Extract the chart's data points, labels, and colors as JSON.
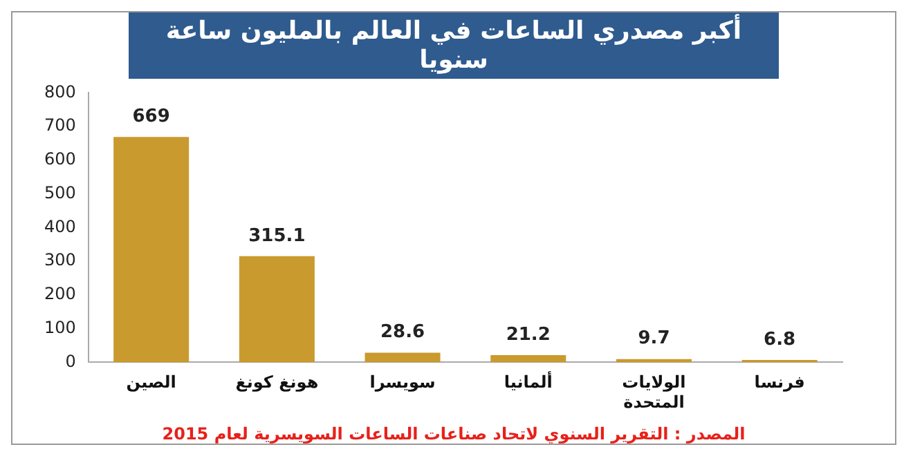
{
  "chart_data": {
    "type": "bar",
    "title": "أكبر مصدري الساعات في العالم بالمليون ساعة سنويا",
    "categories": [
      "الصين",
      "هونغ كونغ",
      "سويسرا",
      "ألمانيا",
      "الولايات المتحدة",
      "فرنسا"
    ],
    "values": [
      669,
      315.1,
      28.6,
      21.2,
      9.7,
      6.8
    ],
    "color": "#c99a2e",
    "ylim": [
      0,
      800
    ],
    "yticks": [
      0,
      100,
      200,
      300,
      400,
      500,
      600,
      700,
      800
    ],
    "grid": false,
    "data_labels": true,
    "annotations": [
      "المصدر : التقرير السنوي لاتحاد صناعات الساعات السويسرية لعام 2015"
    ]
  }
}
